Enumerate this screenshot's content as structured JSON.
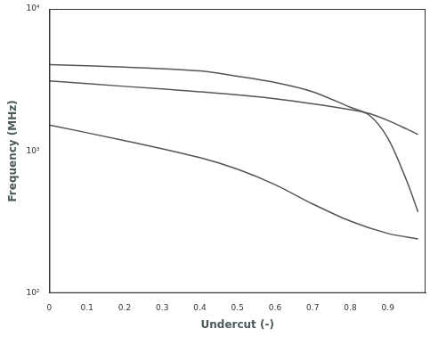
{
  "chart_data": {
    "type": "line",
    "x_label": "Undercut (-)",
    "y_label": "Frequency (MHz)",
    "log": "y",
    "grid": false,
    "xlim": [
      0,
      1
    ],
    "xticks": [
      0,
      0.1,
      0.2,
      0.3,
      0.4,
      0.5,
      0.6,
      0.7,
      0.8,
      0.9
    ],
    "ylim": [
      100,
      10000
    ],
    "yticks": [
      {
        "value": 100,
        "label": "10²"
      },
      {
        "value": 1000,
        "label": "10³"
      },
      {
        "value": 10000,
        "label": "10⁴"
      }
    ],
    "series": [
      {
        "color": "#555555",
        "x": [
          0,
          0.2,
          0.4,
          0.5,
          0.6,
          0.7,
          0.8,
          0.85,
          0.9,
          0.95,
          0.98
        ],
        "values": [
          4055,
          3900,
          3664,
          3357,
          3034,
          2612,
          2032,
          1792,
          1230,
          617,
          373
        ]
      },
      {
        "color": "#555555",
        "x": [
          0,
          0.2,
          0.4,
          0.6,
          0.8,
          0.85,
          0.9,
          0.95,
          0.98
        ],
        "values": [
          3112,
          2851,
          2612,
          2333,
          1958,
          1837,
          1640,
          1429,
          1309
        ]
      },
      {
        "color": "#555555",
        "x": [
          0,
          0.2,
          0.4,
          0.5,
          0.6,
          0.7,
          0.8,
          0.9,
          0.98
        ],
        "values": [
          1523,
          1185,
          899,
          745,
          580,
          424,
          321,
          263,
          241
        ]
      }
    ]
  }
}
